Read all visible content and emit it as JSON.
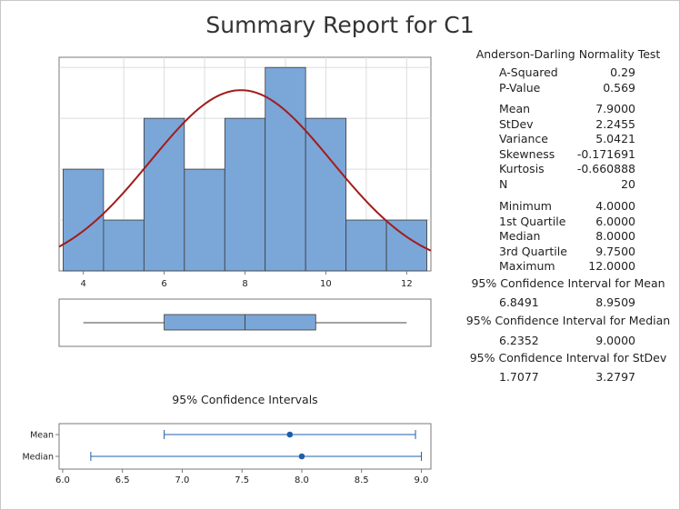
{
  "title": "Summary Report for C1",
  "colors": {
    "bar": "#7ba6d8",
    "bar_edge": "#3a3a3a",
    "curve": "#a11c1c",
    "ci": "#1f5fa8",
    "frame": "#7a7a7a",
    "grid": "#dcdcdc"
  },
  "chart_data": [
    {
      "type": "bar",
      "name": "histogram",
      "bins": [
        {
          "x0": 3.5,
          "x1": 4.5,
          "count": 2
        },
        {
          "x0": 4.5,
          "x1": 5.5,
          "count": 1
        },
        {
          "x0": 5.5,
          "x1": 6.5,
          "count": 3
        },
        {
          "x0": 6.5,
          "x1": 7.5,
          "count": 2
        },
        {
          "x0": 7.5,
          "x1": 8.5,
          "count": 3
        },
        {
          "x0": 8.5,
          "x1": 9.5,
          "count": 4
        },
        {
          "x0": 9.5,
          "x1": 10.5,
          "count": 3
        },
        {
          "x0": 10.5,
          "x1": 11.5,
          "count": 1
        },
        {
          "x0": 11.5,
          "x1": 12.5,
          "count": 1
        }
      ],
      "normal_curve": {
        "mean": 7.9,
        "sd": 2.2455,
        "n": 20,
        "bin_width": 1
      },
      "xticks": [
        4,
        6,
        8,
        10,
        12
      ],
      "xlim": [
        3.4,
        12.6
      ],
      "ylim": [
        0,
        4.2
      ],
      "grid": true
    },
    {
      "type": "boxplot",
      "name": "boxplot",
      "min": 4.0,
      "q1": 6.0,
      "median": 8.0,
      "q3": 9.75,
      "max": 12.0,
      "xlim": [
        3.4,
        12.6
      ]
    },
    {
      "type": "interval",
      "name": "confidence-intervals",
      "title": "95% Confidence Intervals",
      "rows": [
        {
          "label": "Mean",
          "lo": 6.8491,
          "point": 7.9,
          "hi": 8.9509
        },
        {
          "label": "Median",
          "lo": 6.2352,
          "point": 8.0,
          "hi": 9.0
        }
      ],
      "xticks": [
        "6.0",
        "6.5",
        "7.0",
        "7.5",
        "8.0",
        "8.5",
        "9.0"
      ],
      "xlim": [
        5.97,
        9.08
      ]
    }
  ],
  "stats": {
    "ad_title": "Anderson-Darling Normality Test",
    "ad": [
      {
        "label": "A-Squared",
        "value": "0.29"
      },
      {
        "label": "P-Value",
        "value": "0.569"
      }
    ],
    "moments": [
      {
        "label": "Mean",
        "value": "7.9000"
      },
      {
        "label": "StDev",
        "value": "2.2455"
      },
      {
        "label": "Variance",
        "value": "5.0421"
      },
      {
        "label": "Skewness",
        "value": "-0.171691"
      },
      {
        "label": "Kurtosis",
        "value": "-0.660888"
      },
      {
        "label": "N",
        "value": "20"
      }
    ],
    "quartiles": [
      {
        "label": "Minimum",
        "value": "4.0000"
      },
      {
        "label": "1st Quartile",
        "value": "6.0000"
      },
      {
        "label": "Median",
        "value": "8.0000"
      },
      {
        "label": "3rd Quartile",
        "value": "9.7500"
      },
      {
        "label": "Maximum",
        "value": "12.0000"
      }
    ],
    "ci_mean_title": "95% Confidence Interval for Mean",
    "ci_mean": {
      "lo": "6.8491",
      "hi": "8.9509"
    },
    "ci_median_title": "95% Confidence Interval for Median",
    "ci_median": {
      "lo": "6.2352",
      "hi": "9.0000"
    },
    "ci_sd_title": "95% Confidence Interval for StDev",
    "ci_sd": {
      "lo": "1.7077",
      "hi": "3.2797"
    }
  }
}
